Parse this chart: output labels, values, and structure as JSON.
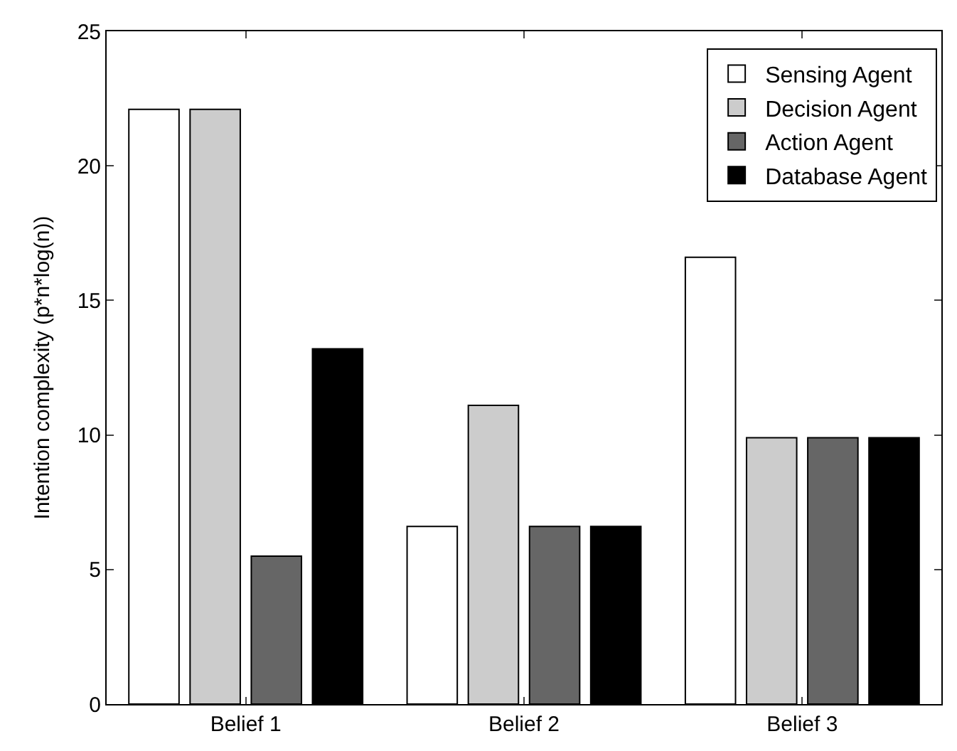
{
  "chart_data": {
    "type": "bar",
    "ylabel": "Intention complexity (p*n*log(n))",
    "categories": [
      "Belief 1",
      "Belief 2",
      "Belief 3"
    ],
    "series": [
      {
        "name": "Sensing Agent",
        "color": "#ffffff",
        "values": [
          22.1,
          6.6,
          16.6
        ]
      },
      {
        "name": "Decision Agent",
        "color": "#cccccc",
        "values": [
          22.1,
          11.1,
          9.9
        ]
      },
      {
        "name": "Action Agent",
        "color": "#666666",
        "values": [
          5.5,
          6.6,
          9.9
        ]
      },
      {
        "name": "Database Agent",
        "color": "#000000",
        "values": [
          13.2,
          6.6,
          9.9
        ]
      }
    ],
    "ylim": [
      0,
      25
    ],
    "yticks": [
      0,
      5,
      10,
      15,
      20,
      25
    ],
    "legend": "top right"
  }
}
